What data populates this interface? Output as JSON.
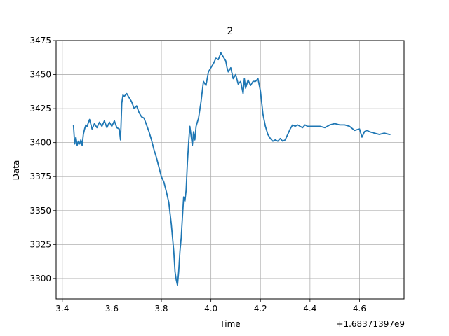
{
  "chart_data": {
    "type": "line",
    "title": "2",
    "xlabel": "Time",
    "ylabel": "Data",
    "x_offset_label": "+1.68371397e9",
    "xlim": [
      3.375,
      4.78
    ],
    "ylim": [
      3285,
      3475
    ],
    "xticks": [
      3.4,
      3.6,
      3.8,
      4.0,
      4.2,
      4.4,
      4.6
    ],
    "xtick_labels": [
      "3.4",
      "3.6",
      "3.8",
      "4.0",
      "4.2",
      "4.4",
      "4.6"
    ],
    "yticks": [
      3300,
      3325,
      3350,
      3375,
      3400,
      3425,
      3450,
      3475
    ],
    "ytick_labels": [
      "3300",
      "3325",
      "3350",
      "3375",
      "3400",
      "3425",
      "3450",
      "3475"
    ],
    "grid": true,
    "color": "#1f77b4",
    "series": [
      {
        "x": [
          3.445,
          3.45,
          3.455,
          3.46,
          3.465,
          3.47,
          3.475,
          3.48,
          3.485,
          3.49,
          3.495,
          3.5,
          3.51,
          3.52,
          3.53,
          3.54,
          3.55,
          3.56,
          3.57,
          3.58,
          3.59,
          3.6,
          3.61,
          3.62,
          3.63,
          3.635,
          3.64,
          3.645,
          3.65,
          3.66,
          3.67,
          3.68,
          3.69,
          3.7,
          3.71,
          3.72,
          3.73,
          3.74,
          3.75,
          3.76,
          3.77,
          3.78,
          3.79,
          3.8,
          3.81,
          3.82,
          3.83,
          3.84,
          3.85,
          3.855,
          3.86,
          3.865,
          3.87,
          3.875,
          3.88,
          3.885,
          3.89,
          3.895,
          3.9,
          3.905,
          3.91,
          3.915,
          3.92,
          3.925,
          3.93,
          3.935,
          3.94,
          3.95,
          3.96,
          3.97,
          3.98,
          3.99,
          4.0,
          4.01,
          4.02,
          4.03,
          4.04,
          4.05,
          4.06,
          4.065,
          4.07,
          4.08,
          4.09,
          4.1,
          4.11,
          4.12,
          4.13,
          4.135,
          4.14,
          4.15,
          4.16,
          4.17,
          4.18,
          4.19,
          4.2,
          4.21,
          4.22,
          4.23,
          4.24,
          4.25,
          4.26,
          4.27,
          4.28,
          4.29,
          4.3,
          4.31,
          4.32,
          4.33,
          4.34,
          4.35,
          4.36,
          4.37,
          4.38,
          4.39,
          4.4,
          4.42,
          4.44,
          4.46,
          4.48,
          4.5,
          4.52,
          4.54,
          4.56,
          4.58,
          4.6,
          4.61,
          4.62,
          4.63,
          4.64,
          4.66,
          4.68,
          4.7,
          4.72,
          4.725
        ],
        "y": [
          3413,
          3399,
          3404,
          3398,
          3401,
          3399,
          3402,
          3398,
          3406,
          3410,
          3413,
          3412,
          3417,
          3410,
          3414,
          3411,
          3415,
          3412,
          3416,
          3411,
          3415,
          3412,
          3416,
          3411,
          3410,
          3402,
          3429,
          3435,
          3434,
          3436,
          3433,
          3430,
          3425,
          3427,
          3422,
          3419,
          3418,
          3413,
          3408,
          3402,
          3395,
          3389,
          3382,
          3375,
          3371,
          3364,
          3356,
          3340,
          3320,
          3305,
          3299,
          3295,
          3305,
          3320,
          3330,
          3345,
          3360,
          3357,
          3365,
          3385,
          3400,
          3412,
          3405,
          3398,
          3408,
          3402,
          3412,
          3418,
          3430,
          3445,
          3442,
          3452,
          3455,
          3458,
          3462,
          3461,
          3466,
          3463,
          3460,
          3455,
          3452,
          3455,
          3447,
          3450,
          3443,
          3445,
          3436,
          3447,
          3440,
          3446,
          3442,
          3445,
          3445,
          3447,
          3438,
          3421,
          3412,
          3406,
          3403,
          3401,
          3402,
          3401,
          3403,
          3401,
          3402,
          3406,
          3410,
          3413,
          3412,
          3413,
          3412,
          3411,
          3413,
          3412,
          3412,
          3412,
          3412,
          3411,
          3413,
          3414,
          3413,
          3413,
          3412,
          3409,
          3410,
          3404,
          3408,
          3409,
          3408,
          3407,
          3406,
          3407,
          3406,
          3406
        ]
      }
    ]
  }
}
